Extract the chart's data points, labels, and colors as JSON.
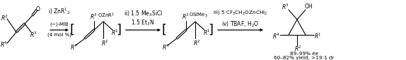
{
  "background_color": "#ffffff",
  "figsize": [
    5.74,
    0.86
  ],
  "dpi": 100,
  "arrow1_top": "i) ZnR$^1$$_2$",
  "arrow1_mid": "(−)-MIB",
  "arrow1_bot": "(4 mol %)",
  "arrow2_top1": "ii) 1.5 Me$_3$SiCl",
  "arrow2_top2": "1.5 Et$_3$N",
  "arrow3_top": "iii) 5 CF$_3$CH$_2$OZnCHI$_2$",
  "arrow3_bot": "iv) TBAF, H$_2$O",
  "yield1": "89–99% ee",
  "yield2": "60–82% yield, >19:1 dr"
}
